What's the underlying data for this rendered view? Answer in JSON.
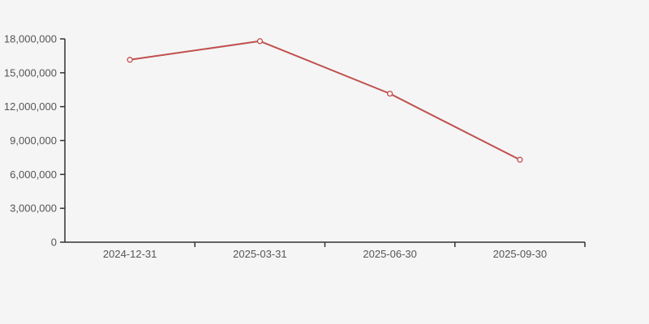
{
  "page": {
    "background_color": "#f5f5f5"
  },
  "chart_data": {
    "type": "line",
    "title": "",
    "xlabel": "",
    "ylabel": "",
    "categories": [
      "2024-12-31",
      "2025-03-31",
      "2025-06-30",
      "2025-09-30"
    ],
    "series": [
      {
        "name": "value",
        "values": [
          16150000,
          17800000,
          13150000,
          7300000
        ]
      }
    ],
    "ylim": [
      0,
      18000000
    ],
    "ytick_step": 3000000,
    "ytick_labels": [
      "0",
      "3,000,000",
      "6,000,000",
      "9,000,000",
      "12,000,000",
      "15,000,000",
      "18,000,000"
    ],
    "grid": false,
    "legend_position": "none",
    "colors": {
      "line": "#c0504d",
      "marker_fill": "#f5f5f5",
      "axis": "#333333",
      "tick_label": "#555555",
      "background": "#f5f5f5"
    },
    "marker": "open-circle"
  }
}
